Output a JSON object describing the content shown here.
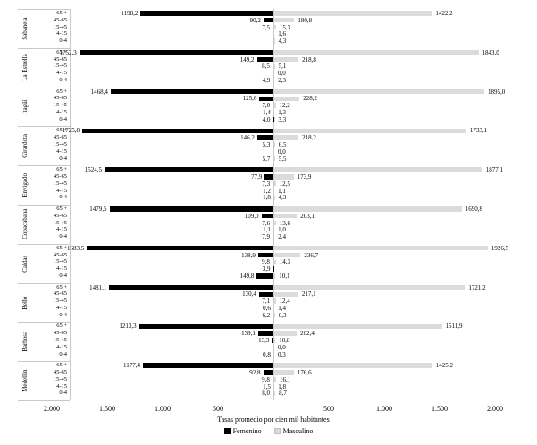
{
  "chart_data": {
    "type": "bar",
    "variant": "diverging-horizontal",
    "title": "",
    "xlabel": "Tasas promedio por cien mil habitantes",
    "age_groups": [
      "65 +",
      "45-65",
      "15-45",
      "4-15",
      "0-4"
    ],
    "axis_ticks_left": [
      "2.000",
      "1.500",
      "1.000",
      "500"
    ],
    "axis_ticks_right": [
      "500",
      "1.000",
      "1.500",
      "2.000"
    ],
    "x_max": 2000,
    "grid": "center-line-only",
    "legend_position": "bottom",
    "legend": [
      {
        "name": "Femenino",
        "color": "#000000"
      },
      {
        "name": "Masculino",
        "color": "#d9d9d9"
      }
    ],
    "series_note": "femenino values extend left of center axis, masculino right; null = no bar/label shown",
    "municipalities": [
      {
        "name": "Sabaneta",
        "femenino": [
          1198.2,
          90.2,
          7.5,
          null,
          null
        ],
        "masculino": [
          1422.2,
          180.8,
          15.3,
          1.6,
          4.3
        ]
      },
      {
        "name": "La Estrella",
        "femenino": [
          1752.3,
          149.2,
          8.5,
          null,
          4.9
        ],
        "masculino": [
          1843.0,
          218.8,
          5.1,
          0.0,
          2.3
        ]
      },
      {
        "name": "Itagüí",
        "femenino": [
          1468.4,
          125.6,
          7.0,
          1.4,
          4.0
        ],
        "masculino": [
          1895.0,
          228.2,
          12.2,
          1.3,
          3.3
        ]
      },
      {
        "name": "Girardota",
        "femenino": [
          1725.8,
          146.2,
          5.3,
          null,
          5.7
        ],
        "masculino": [
          1733.1,
          218.2,
          6.5,
          0.0,
          5.5
        ]
      },
      {
        "name": "Envigado",
        "femenino": [
          1524.5,
          77.9,
          7.3,
          1.2,
          1.8
        ],
        "masculino": [
          1877.1,
          173.9,
          12.5,
          1.1,
          4.3
        ]
      },
      {
        "name": "Copacabana",
        "femenino": [
          1479.5,
          109.0,
          7.6,
          1.1,
          7.9
        ],
        "masculino": [
          1690.8,
          203.1,
          13.6,
          1.0,
          2.4
        ]
      },
      {
        "name": "Caldas",
        "femenino": [
          1683.5,
          138.9,
          9.8,
          3.9,
          149.8
        ],
        "masculino": [
          1926.5,
          236.7,
          14.3,
          null,
          10.1
        ]
      },
      {
        "name": "Bello",
        "femenino": [
          1481.1,
          130.4,
          7.1,
          0.6,
          6.2
        ],
        "masculino": [
          1721.2,
          217.1,
          12.4,
          1.4,
          6.3
        ]
      },
      {
        "name": "Barbosa",
        "femenino": [
          1213.3,
          139.1,
          13.3,
          null,
          0.8
        ],
        "masculino": [
          1511.9,
          202.4,
          10.8,
          0.0,
          0.3
        ]
      },
      {
        "name": "Medellín",
        "femenino": [
          1177.4,
          92.8,
          9.8,
          1.5,
          8.0
        ],
        "masculino": [
          1425.2,
          176.6,
          16.1,
          1.8,
          8.7
        ]
      }
    ]
  }
}
